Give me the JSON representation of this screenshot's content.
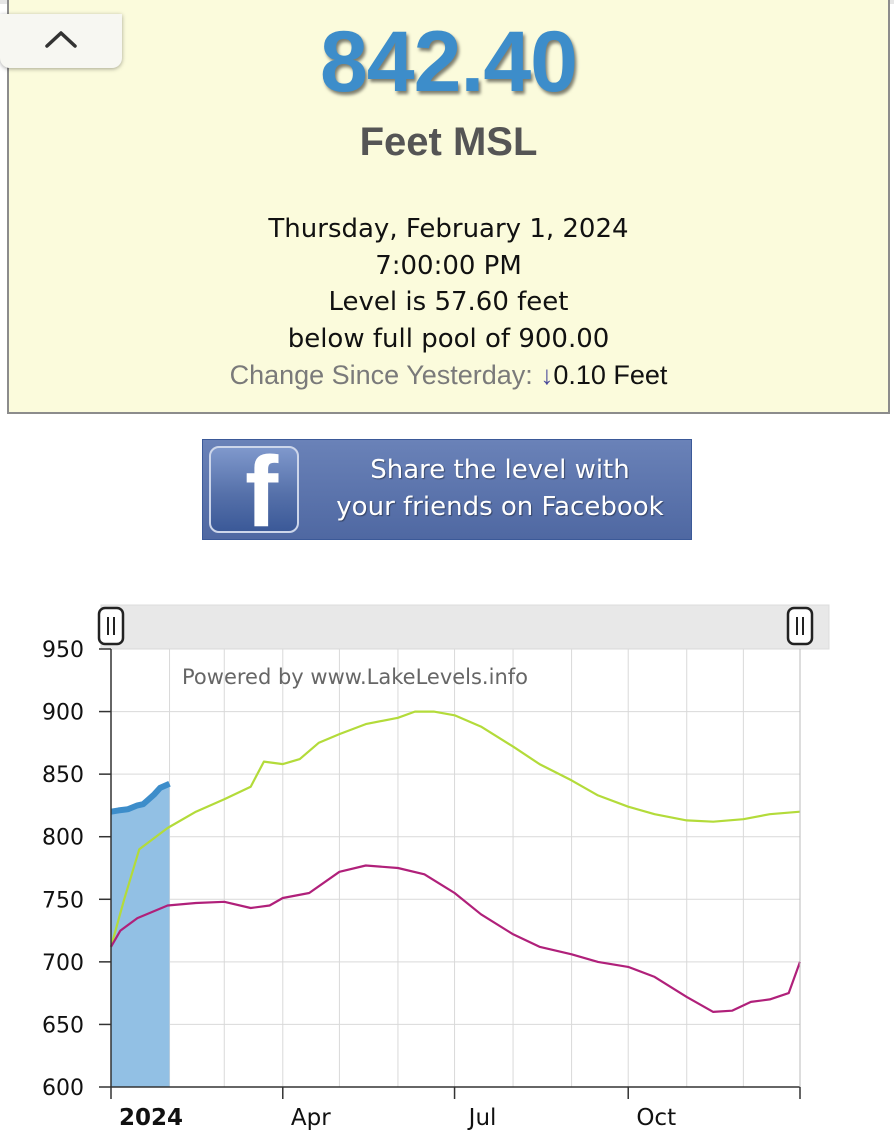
{
  "panel": {
    "level": "842.40",
    "units": "Feet MSL",
    "date": "Thursday, February 1, 2024",
    "time": "7:00:00 PM",
    "below_text": "Level is 57.60 feet",
    "full_pool_text": "below full pool of 900.00",
    "change_label": "Change Since Yesterday:",
    "change_arrow": "↓",
    "change_value": "0.10 Feet"
  },
  "share": {
    "line1": "Share the level with",
    "line2": "your friends on Facebook",
    "logo_letter": "f"
  },
  "icons": {
    "collapse": "chevron-up-icon",
    "facebook": "facebook-icon",
    "range_handle": "slider-handle-icon"
  },
  "colors": {
    "level_text": "#3d8dca",
    "current_area": "#92c0e4",
    "current_line": "#3d8dca",
    "high_line": "#b3db3a",
    "low_line": "#b0207a"
  },
  "chart_data": {
    "type": "line",
    "watermark": "Powered by www.LakeLevels.info",
    "ylim": [
      600,
      950
    ],
    "yticks": [
      "950",
      "900",
      "850",
      "800",
      "750",
      "700",
      "650",
      "600"
    ],
    "xlim": [
      "2024-01-01",
      "2024-12-31"
    ],
    "xticks": [
      {
        "label": "2024",
        "date": "2024-01-01",
        "bold": true
      },
      {
        "label": "Apr",
        "date": "2024-04-01",
        "bold": false
      },
      {
        "label": "Jul",
        "date": "2024-07-01",
        "bold": false
      },
      {
        "label": "Oct",
        "date": "2024-10-01",
        "bold": false
      }
    ],
    "grid": true,
    "series": [
      {
        "style": "area",
        "color": "#3d8dca",
        "fill": "#92c0e4",
        "points": [
          [
            "2024-01-01",
            820
          ],
          [
            "2024-01-05",
            821
          ],
          [
            "2024-01-10",
            822
          ],
          [
            "2024-01-15",
            825
          ],
          [
            "2024-01-18",
            826
          ],
          [
            "2024-01-21",
            830
          ],
          [
            "2024-01-24",
            834
          ],
          [
            "2024-01-27",
            839
          ],
          [
            "2024-02-01",
            842.4
          ]
        ]
      },
      {
        "style": "line",
        "color": "#b3db3a",
        "points": [
          [
            "2024-01-01",
            712
          ],
          [
            "2024-01-08",
            750
          ],
          [
            "2024-01-16",
            790
          ],
          [
            "2024-01-31",
            807
          ],
          [
            "2024-02-15",
            820
          ],
          [
            "2024-03-01",
            830
          ],
          [
            "2024-03-15",
            840
          ],
          [
            "2024-03-22",
            860
          ],
          [
            "2024-04-01",
            858
          ],
          [
            "2024-04-10",
            862
          ],
          [
            "2024-04-20",
            875
          ],
          [
            "2024-05-01",
            882
          ],
          [
            "2024-05-15",
            890
          ],
          [
            "2024-06-01",
            895
          ],
          [
            "2024-06-10",
            900
          ],
          [
            "2024-06-20",
            900
          ],
          [
            "2024-07-01",
            897
          ],
          [
            "2024-07-15",
            888
          ],
          [
            "2024-08-01",
            872
          ],
          [
            "2024-08-15",
            858
          ],
          [
            "2024-09-01",
            845
          ],
          [
            "2024-09-15",
            833
          ],
          [
            "2024-10-01",
            824
          ],
          [
            "2024-10-15",
            818
          ],
          [
            "2024-11-01",
            813
          ],
          [
            "2024-11-15",
            812
          ],
          [
            "2024-12-01",
            814
          ],
          [
            "2024-12-15",
            818
          ],
          [
            "2024-12-31",
            820
          ]
        ]
      },
      {
        "style": "line",
        "color": "#b0207a",
        "points": [
          [
            "2024-01-01",
            712
          ],
          [
            "2024-01-06",
            725
          ],
          [
            "2024-01-15",
            735
          ],
          [
            "2024-01-31",
            745
          ],
          [
            "2024-02-15",
            747
          ],
          [
            "2024-03-01",
            748
          ],
          [
            "2024-03-15",
            743
          ],
          [
            "2024-03-25",
            745
          ],
          [
            "2024-04-01",
            751
          ],
          [
            "2024-04-15",
            755
          ],
          [
            "2024-05-01",
            772
          ],
          [
            "2024-05-15",
            777
          ],
          [
            "2024-06-01",
            775
          ],
          [
            "2024-06-15",
            770
          ],
          [
            "2024-07-01",
            755
          ],
          [
            "2024-07-15",
            738
          ],
          [
            "2024-08-01",
            722
          ],
          [
            "2024-08-15",
            712
          ],
          [
            "2024-09-01",
            706
          ],
          [
            "2024-09-15",
            700
          ],
          [
            "2024-10-01",
            696
          ],
          [
            "2024-10-15",
            688
          ],
          [
            "2024-11-01",
            672
          ],
          [
            "2024-11-15",
            660
          ],
          [
            "2024-11-25",
            661
          ],
          [
            "2024-12-05",
            668
          ],
          [
            "2024-12-15",
            670
          ],
          [
            "2024-12-25",
            675
          ],
          [
            "2024-12-31",
            700
          ]
        ]
      }
    ]
  }
}
